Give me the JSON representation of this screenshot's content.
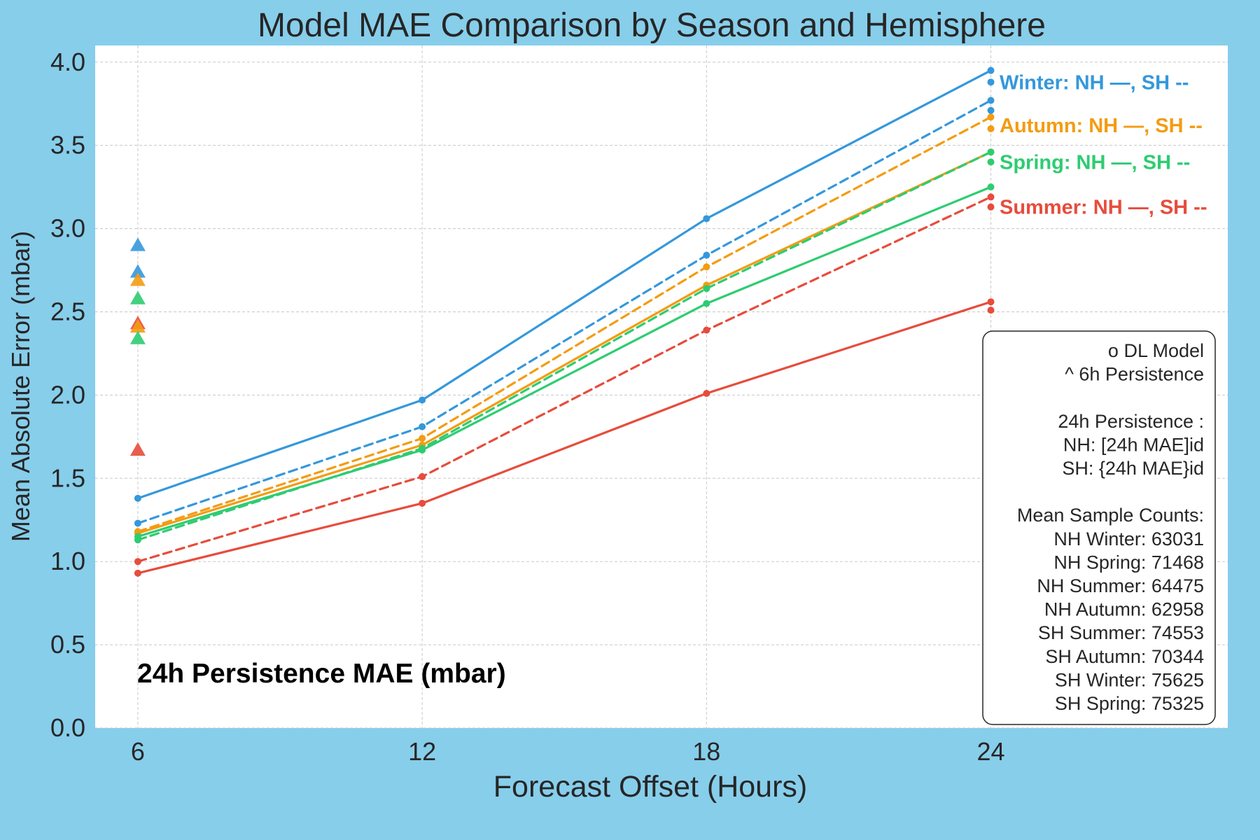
{
  "chart_data": {
    "type": "line",
    "title": "Model MAE Comparison by Season and Hemisphere",
    "xlabel": "Forecast Offset (Hours)",
    "ylabel": "Mean Absolute Error (mbar)",
    "x": [
      6,
      12,
      18,
      24
    ],
    "xticks": [
      "6",
      "12",
      "18",
      "24"
    ],
    "xlim": [
      5.1,
      29.0
    ],
    "ylim": [
      0.0,
      4.1
    ],
    "yticks": [
      "0.0",
      "0.5",
      "1.0",
      "1.5",
      "2.0",
      "2.5",
      "3.0",
      "3.5",
      "4.0"
    ],
    "grid": true,
    "colors": {
      "winter": "#3498db",
      "autumn": "#f39c12",
      "spring": "#2ecc71",
      "summer": "#e74c3c",
      "plot_bg": "#ffffff",
      "page_bg": "#87CEEB"
    },
    "series": [
      {
        "season": "winter",
        "hemisphere": "NH",
        "style": "solid",
        "values": [
          1.38,
          1.97,
          3.06,
          3.95
        ]
      },
      {
        "season": "winter",
        "hemisphere": "SH",
        "style": "dashed",
        "values": [
          1.23,
          1.81,
          2.84,
          3.77
        ]
      },
      {
        "season": "autumn",
        "hemisphere": "NH",
        "style": "solid",
        "values": [
          1.17,
          1.7,
          2.66,
          3.46
        ]
      },
      {
        "season": "autumn",
        "hemisphere": "SH",
        "style": "dashed",
        "values": [
          1.18,
          1.74,
          2.77,
          3.67
        ]
      },
      {
        "season": "spring",
        "hemisphere": "NH",
        "style": "solid",
        "values": [
          1.15,
          1.67,
          2.55,
          3.25
        ]
      },
      {
        "season": "spring",
        "hemisphere": "SH",
        "style": "dashed",
        "values": [
          1.13,
          1.68,
          2.64,
          3.46
        ]
      },
      {
        "season": "summer",
        "hemisphere": "NH",
        "style": "solid",
        "values": [
          0.93,
          1.35,
          2.01,
          2.56
        ]
      },
      {
        "season": "summer",
        "hemisphere": "SH",
        "style": "dashed",
        "values": [
          1.0,
          1.51,
          2.39,
          3.19
        ]
      }
    ],
    "end_markers": [
      {
        "season": "winter",
        "values": [
          3.88,
          3.71
        ]
      },
      {
        "season": "autumn",
        "values": [
          3.6
        ]
      },
      {
        "season": "spring",
        "values": [
          3.4
        ]
      },
      {
        "season": "summer",
        "values": [
          3.13,
          2.51
        ]
      }
    ],
    "persistence_6h": [
      {
        "season": "winter",
        "value": 2.9
      },
      {
        "season": "winter",
        "value": 2.74
      },
      {
        "season": "autumn",
        "value": 2.69
      },
      {
        "season": "spring",
        "value": 2.58
      },
      {
        "season": "summer",
        "value": 2.43
      },
      {
        "season": "autumn",
        "value": 2.41
      },
      {
        "season": "spring",
        "value": 2.34
      },
      {
        "season": "summer",
        "value": 1.67
      }
    ],
    "annotations": [
      {
        "season": "winter",
        "text": "Winter: NH —, SH --",
        "y": 3.88
      },
      {
        "season": "autumn",
        "text": "Autumn: NH —, SH --",
        "y": 3.62
      },
      {
        "season": "spring",
        "text": "Spring: NH —, SH --",
        "y": 3.4
      },
      {
        "season": "summer",
        "text": "Summer: NH —, SH --",
        "y": 3.13
      }
    ],
    "persistence_label": "24h Persistence MAE (mbar)",
    "legend": {
      "placement": "lower-right",
      "lines": [
        "o  DL Model",
        "^  6h Persistence",
        "",
        "24h Persistence :",
        "NH: [24h MAE]id",
        "SH: {24h MAE}id",
        "",
        "Mean Sample Counts:",
        "NH Winter: 63031",
        "NH Spring: 71468",
        "NH Summer: 64475",
        "NH Autumn: 62958",
        "SH Summer: 74553",
        "SH Autumn: 70344",
        "SH Winter: 75625",
        "SH Spring: 75325"
      ]
    }
  }
}
